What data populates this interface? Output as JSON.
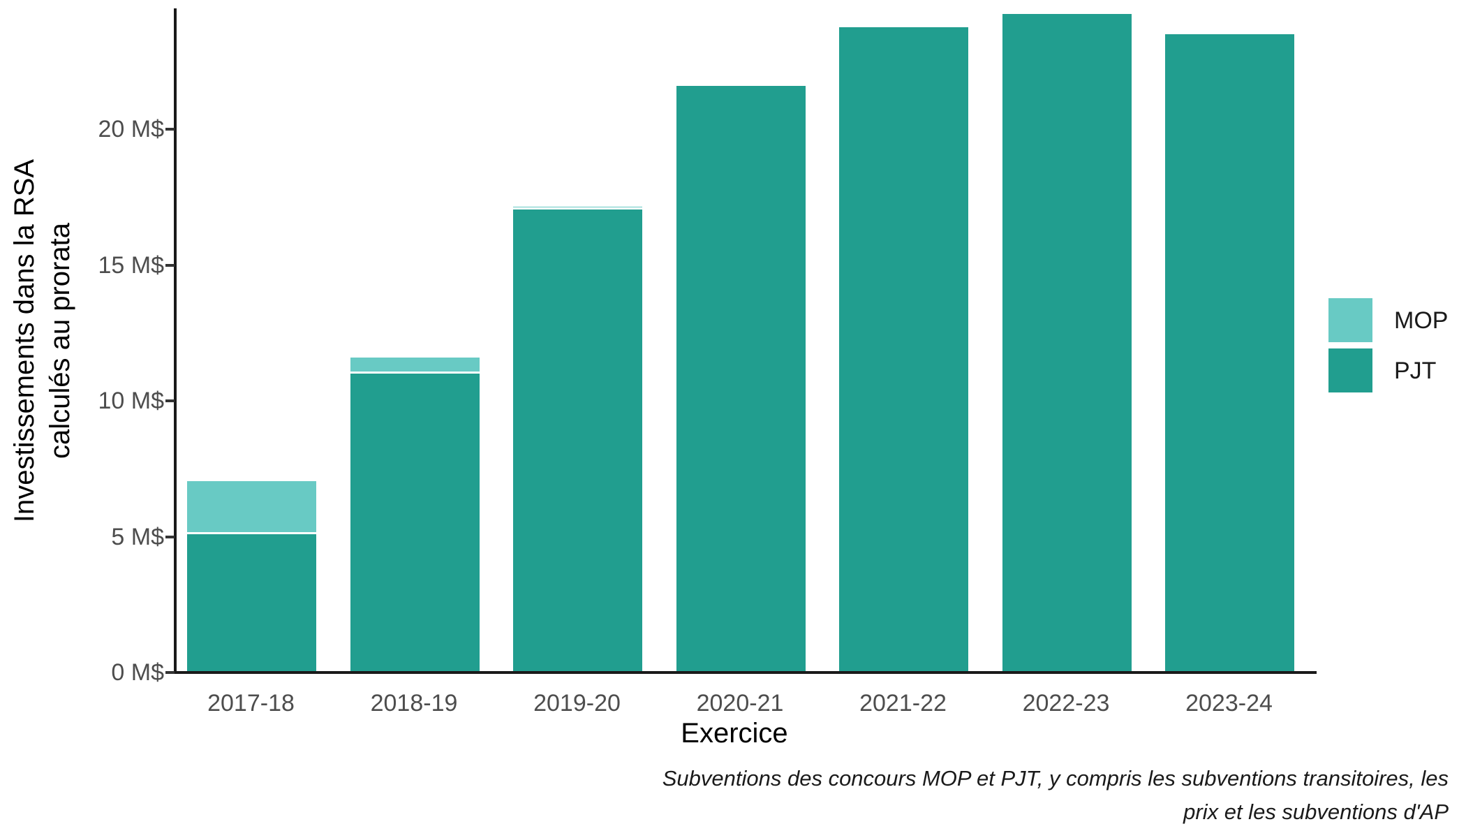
{
  "chart_data": {
    "type": "bar",
    "stacked": true,
    "title": "",
    "xlabel": "Exercice",
    "ylabel": "Investissements dans la RSA calculés au prorata",
    "ylabel_lines": [
      "Investissements dans la RSA",
      "calculés au prorata"
    ],
    "categories": [
      "2017-18",
      "2018-19",
      "2019-20",
      "2020-21",
      "2021-22",
      "2022-23",
      "2023-24"
    ],
    "series": [
      {
        "name": "MOP",
        "color": "#68CAC4",
        "values": [
          1.95,
          0.6,
          0.1,
          0,
          0,
          0,
          0
        ]
      },
      {
        "name": "PJT",
        "color": "#219E8F",
        "values": [
          5.05,
          10.95,
          17.0,
          21.55,
          23.7,
          24.2,
          23.45
        ]
      }
    ],
    "stack_order_bottom_up": [
      "PJT",
      "MOP"
    ],
    "units": "M$",
    "y_ticks": [
      {
        "value": 0,
        "label": "0 M$"
      },
      {
        "value": 5,
        "label": "5 M$"
      },
      {
        "value": 10,
        "label": "10 M$"
      },
      {
        "value": 15,
        "label": "15 M$"
      },
      {
        "value": 20,
        "label": "20 M$"
      }
    ],
    "ylim": [
      0,
      24.4
    ],
    "grid": false,
    "legend_position": "right",
    "caption_lines": [
      "Subventions des concours MOP et PJT, y compris les subventions transitoires, les",
      "prix et les subventions d'AP"
    ]
  },
  "colors": {
    "background": "#ffffff",
    "axis_line": "#1a1a1a",
    "tick_mark": "#333333",
    "tick_label": "#4d4d4d",
    "title_text": "#000000",
    "segment_outline": "#ffffff"
  }
}
